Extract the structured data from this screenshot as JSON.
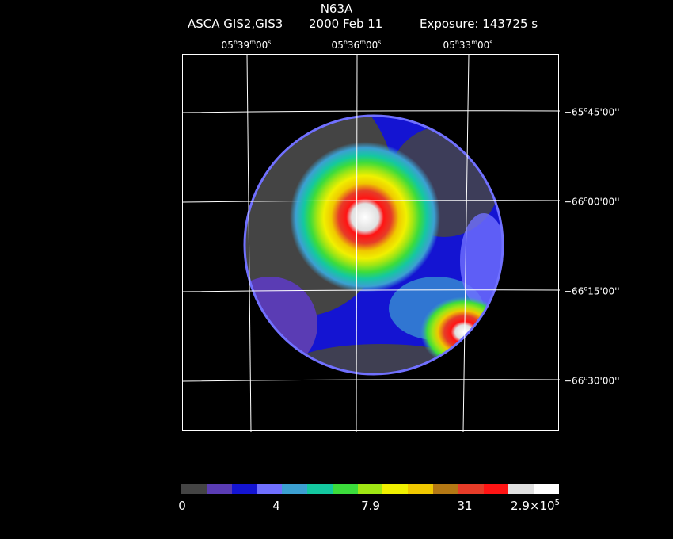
{
  "figure": {
    "title": "N63A",
    "instrument": "ASCA GIS2,GIS3",
    "date": "2000 Feb 11",
    "exposure": "Exposure: 143725 s"
  },
  "ra_labels": [
    {
      "h": "05",
      "m": "39",
      "s": "00"
    },
    {
      "h": "05",
      "m": "36",
      "s": "00"
    },
    {
      "h": "05",
      "m": "33",
      "s": "00"
    }
  ],
  "dec_labels": [
    {
      "sign": "−65",
      "d": "45",
      "m": "00"
    },
    {
      "sign": "−66",
      "d": "00",
      "m": "00"
    },
    {
      "sign": "−66",
      "d": "15",
      "m": "00"
    },
    {
      "sign": "−66",
      "d": "30",
      "m": "00"
    }
  ],
  "colorbar": {
    "colors": [
      "#444444",
      "#5a3cb4",
      "#1414d2",
      "#7070ff",
      "#3ca0d2",
      "#14c8a0",
      "#3cdc3c",
      "#a0e614",
      "#f0f000",
      "#f0c800",
      "#b47814",
      "#e63c28",
      "#ff1414",
      "#e0e0e0",
      "#ffffff"
    ],
    "labels": [
      "0",
      "4",
      "7.9",
      "31"
    ],
    "max_label_mantissa": "2.9×10",
    "max_label_exp": "5"
  }
}
